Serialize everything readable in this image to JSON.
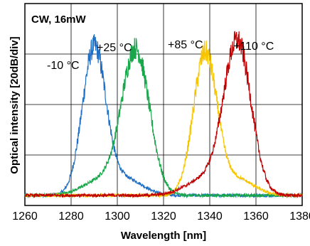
{
  "chart_data": {
    "type": "line",
    "title": "CW, 16mW",
    "xlabel": "Wavelength [nm]",
    "ylabel": "Optical intensity [20dB/div]",
    "xlim": [
      1260,
      1380
    ],
    "x_ticks": [
      "1260",
      "1280",
      "1300",
      "1320",
      "1340",
      "1360",
      "1380"
    ],
    "y_divisions": 4,
    "grid": true,
    "legend": "none",
    "series": [
      {
        "name": "-10 °C",
        "color": "#1f6fc4",
        "center": 1290,
        "fwhm": 12,
        "peak": 0.78
      },
      {
        "name": "+25 °C",
        "color": "#1aa64a",
        "center": 1308,
        "fwhm": 14,
        "peak": 0.76
      },
      {
        "name": "+85 °C",
        "color": "#f7c400",
        "center": 1338,
        "fwhm": 12,
        "peak": 0.75
      },
      {
        "name": "+110 °C",
        "color": "#c00000",
        "center": 1352,
        "fwhm": 14,
        "peak": 0.8
      }
    ],
    "annotations": [
      "-10 °C",
      "+25 °C",
      "+85 °C",
      "+110 °C"
    ]
  }
}
